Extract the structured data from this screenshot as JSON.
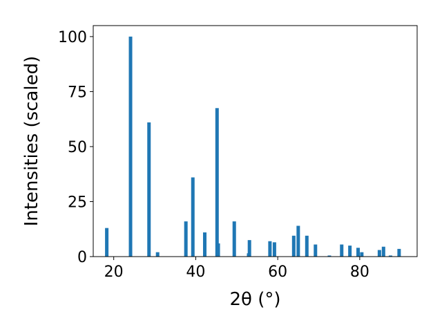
{
  "chart_data": {
    "type": "bar",
    "xlabel": "2θ (°)",
    "ylabel": "Intensities (scaled)",
    "xlim": [
      15,
      94
    ],
    "ylim": [
      0,
      105
    ],
    "xticks": [
      20,
      40,
      60,
      80
    ],
    "yticks": [
      0,
      25,
      50,
      75,
      100
    ],
    "bar_color": "#1f77b4",
    "peaks": [
      {
        "x": 18.3,
        "y": 13
      },
      {
        "x": 24.1,
        "y": 100
      },
      {
        "x": 28.6,
        "y": 61
      },
      {
        "x": 30.7,
        "y": 2
      },
      {
        "x": 37.6,
        "y": 16
      },
      {
        "x": 39.3,
        "y": 36
      },
      {
        "x": 42.2,
        "y": 11
      },
      {
        "x": 45.2,
        "y": 67.5
      },
      {
        "x": 45.5,
        "y": 6
      },
      {
        "x": 49.4,
        "y": 16
      },
      {
        "x": 53.1,
        "y": 7.5
      },
      {
        "x": 52.9,
        "y": 1.5
      },
      {
        "x": 58.1,
        "y": 7
      },
      {
        "x": 59.2,
        "y": 6.5
      },
      {
        "x": 63.9,
        "y": 9.5
      },
      {
        "x": 65.0,
        "y": 14
      },
      {
        "x": 67.1,
        "y": 9.5
      },
      {
        "x": 69.2,
        "y": 5.5
      },
      {
        "x": 72.6,
        "y": 0.5
      },
      {
        "x": 75.6,
        "y": 5.5
      },
      {
        "x": 77.6,
        "y": 5
      },
      {
        "x": 79.6,
        "y": 4
      },
      {
        "x": 80.5,
        "y": 2
      },
      {
        "x": 84.8,
        "y": 3
      },
      {
        "x": 85.8,
        "y": 4.5
      },
      {
        "x": 87.5,
        "y": 0.5
      },
      {
        "x": 89.6,
        "y": 3.5
      }
    ]
  }
}
